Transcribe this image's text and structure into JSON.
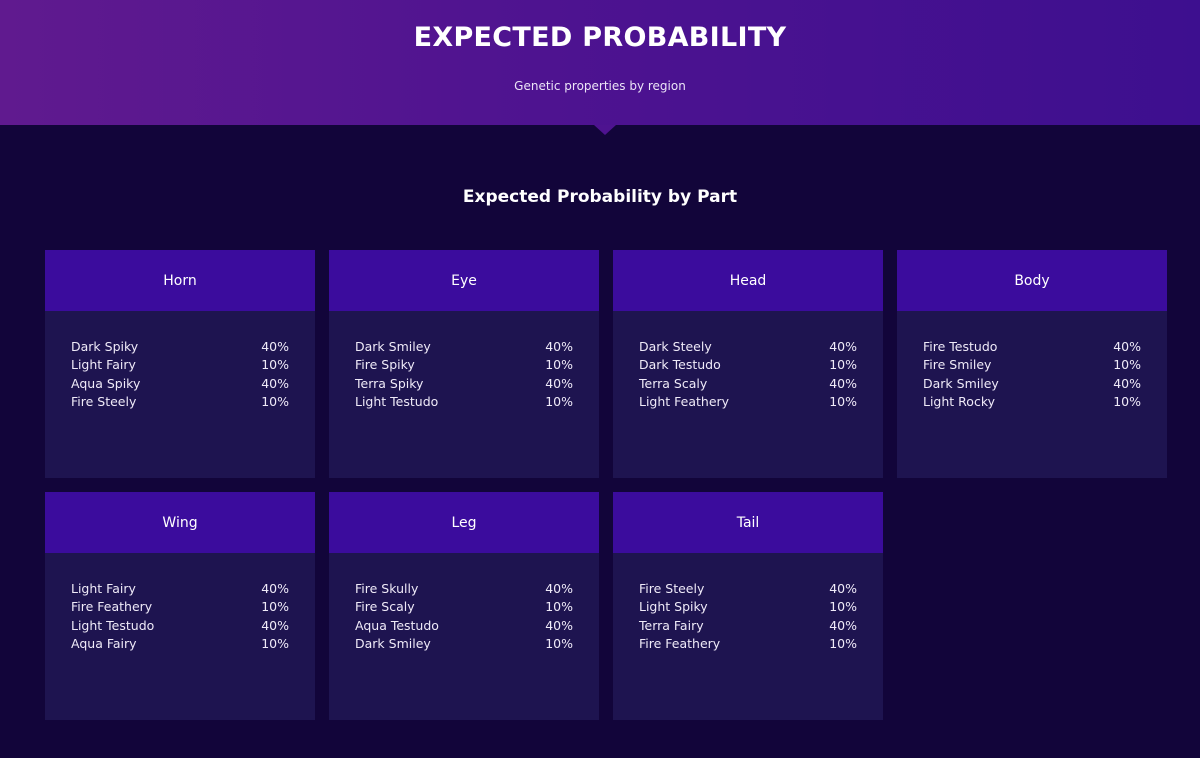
{
  "hero": {
    "title": "EXPECTED PROBABILITY",
    "subtitle": "Genetic properties by region"
  },
  "section": {
    "title": "Expected Probability by Part"
  },
  "parts": [
    {
      "name": "Horn",
      "rows": [
        {
          "label": "Dark Spiky",
          "value": "40%"
        },
        {
          "label": "Light Fairy",
          "value": "10%"
        },
        {
          "label": "Aqua Spiky",
          "value": "40%"
        },
        {
          "label": "Fire Steely",
          "value": "10%"
        }
      ]
    },
    {
      "name": "Eye",
      "rows": [
        {
          "label": "Dark Smiley",
          "value": "40%"
        },
        {
          "label": "Fire Spiky",
          "value": "10%"
        },
        {
          "label": "Terra Spiky",
          "value": "40%"
        },
        {
          "label": "Light Testudo",
          "value": "10%"
        }
      ]
    },
    {
      "name": "Head",
      "rows": [
        {
          "label": "Dark Steely",
          "value": "40%"
        },
        {
          "label": "Dark Testudo",
          "value": "10%"
        },
        {
          "label": "Terra Scaly",
          "value": "40%"
        },
        {
          "label": "Light Feathery",
          "value": "10%"
        }
      ]
    },
    {
      "name": "Body",
      "rows": [
        {
          "label": "Fire Testudo",
          "value": "40%"
        },
        {
          "label": "Fire Smiley",
          "value": "10%"
        },
        {
          "label": "Dark Smiley",
          "value": "40%"
        },
        {
          "label": "Light Rocky",
          "value": "10%"
        }
      ]
    },
    {
      "name": "Wing",
      "rows": [
        {
          "label": "Light Fairy",
          "value": "40%"
        },
        {
          "label": "Fire Feathery",
          "value": "10%"
        },
        {
          "label": "Light Testudo",
          "value": "40%"
        },
        {
          "label": "Aqua Fairy",
          "value": "10%"
        }
      ]
    },
    {
      "name": "Leg",
      "rows": [
        {
          "label": "Fire Skully",
          "value": "40%"
        },
        {
          "label": "Fire Scaly",
          "value": "10%"
        },
        {
          "label": "Aqua Testudo",
          "value": "40%"
        },
        {
          "label": "Dark Smiley",
          "value": "10%"
        }
      ]
    },
    {
      "name": "Tail",
      "rows": [
        {
          "label": "Fire Steely",
          "value": "40%"
        },
        {
          "label": "Light Spiky",
          "value": "10%"
        },
        {
          "label": "Terra Fairy",
          "value": "40%"
        },
        {
          "label": "Fire Feathery",
          "value": "10%"
        }
      ]
    }
  ],
  "colors": {
    "page_background": "#12053a",
    "card_background": "#1e1450",
    "card_header": "#3b0c9d",
    "hero_gradient_start": "#601a8f",
    "hero_gradient_end": "#3d0f8f"
  }
}
